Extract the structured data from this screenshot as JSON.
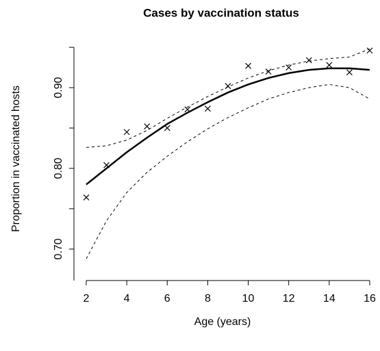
{
  "chart_data": {
    "type": "line",
    "title": "Cases by vaccination status",
    "xlabel": "Age (years)",
    "ylabel": "Proportion in vaccinated hosts",
    "x": [
      2,
      3,
      4,
      5,
      6,
      7,
      8,
      9,
      10,
      11,
      12,
      13,
      14,
      15,
      16
    ],
    "series": [
      {
        "mode": "markers",
        "marker": "x",
        "color": "#000000",
        "values": [
          0.764,
          0.804,
          0.845,
          0.852,
          0.85,
          0.873,
          0.874,
          0.902,
          0.927,
          0.92,
          0.925,
          0.934,
          0.928,
          0.919,
          0.946
        ]
      },
      {
        "mode": "line",
        "linestyle": "solid",
        "width": 2.5,
        "color": "#000000",
        "values": [
          0.78,
          0.8,
          0.82,
          0.838,
          0.855,
          0.869,
          0.882,
          0.894,
          0.904,
          0.912,
          0.918,
          0.922,
          0.924,
          0.924,
          0.922
        ]
      },
      {
        "mode": "line",
        "linestyle": "dashed",
        "width": 1,
        "color": "#000000",
        "values": [
          0.826,
          0.828,
          0.835,
          0.847,
          0.862,
          0.876,
          0.889,
          0.901,
          0.912,
          0.921,
          0.928,
          0.933,
          0.936,
          0.938,
          0.948
        ]
      },
      {
        "mode": "line",
        "linestyle": "dashed",
        "width": 1,
        "color": "#000000",
        "values": [
          0.688,
          0.735,
          0.77,
          0.795,
          0.815,
          0.833,
          0.849,
          0.863,
          0.875,
          0.886,
          0.894,
          0.9,
          0.904,
          0.9,
          0.886
        ]
      }
    ],
    "xlim": [
      1.46,
      16.17
    ],
    "ylim": [
      0.661,
      0.962
    ],
    "xticks": [
      2,
      4,
      6,
      8,
      10,
      12,
      14,
      16
    ],
    "yticks": [
      {
        "value": 0.7,
        "label": "0.70"
      },
      {
        "value": 0.75,
        "label": null
      },
      {
        "value": 0.8,
        "label": "0.80"
      },
      {
        "value": 0.85,
        "label": null
      },
      {
        "value": 0.9,
        "label": "0.90"
      },
      {
        "value": 0.95,
        "label": null
      }
    ],
    "grid": false
  }
}
